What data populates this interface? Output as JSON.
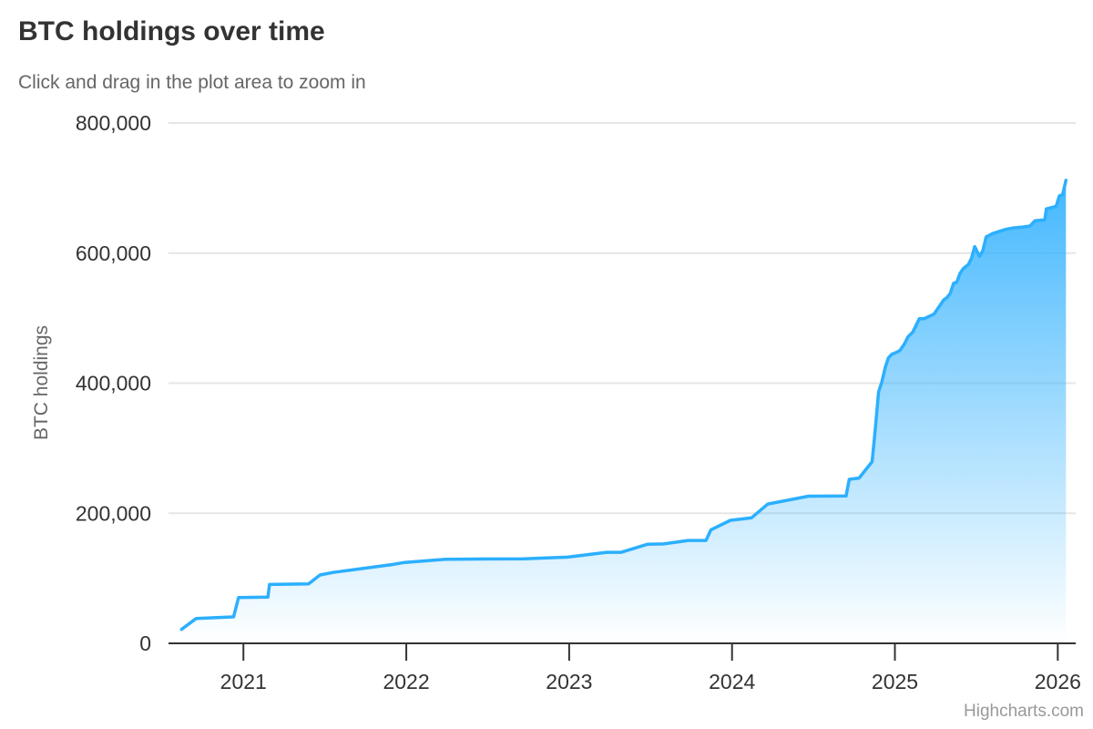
{
  "header": {
    "title": "BTC holdings over time",
    "subtitle": "Click and drag in the plot area to zoom in"
  },
  "credits_label": "Highcharts.com",
  "colors": {
    "line": "#2caffe",
    "fill_top": "rgba(44,175,254,1)",
    "fill_bottom": "rgba(44,175,254,0)",
    "grid": "#e6e6e6",
    "axis_line": "#333333",
    "axis_label": "#333333",
    "axis_title": "#666666",
    "title_text": "#333333",
    "subtitle_text": "#666666",
    "credits_text": "#999999"
  },
  "chart_data": {
    "type": "area",
    "title": "BTC holdings over time",
    "subtitle": "Click and drag in the plot area to zoom in",
    "xlabel": "",
    "ylabel": "BTC holdings",
    "legend": false,
    "grid": "horizontal",
    "xlim": [
      2020.54,
      2026.11
    ],
    "ylim": [
      0,
      800000
    ],
    "xticks": [
      2021,
      2022,
      2023,
      2024,
      2025,
      2026
    ],
    "yticks": [
      0,
      200000,
      400000,
      600000,
      800000
    ],
    "x": [
      2020.62,
      2020.71,
      2020.94,
      2020.97,
      2021.15,
      2021.16,
      2021.4,
      2021.47,
      2021.55,
      2021.7,
      2021.91,
      2021.99,
      2022.24,
      2022.49,
      2022.72,
      2022.99,
      2023.23,
      2023.32,
      2023.48,
      2023.58,
      2023.73,
      2023.84,
      2023.87,
      2023.99,
      2024.12,
      2024.22,
      2024.47,
      2024.7,
      2024.72,
      2024.78,
      2024.86,
      2024.88,
      2024.9,
      2024.92,
      2024.94,
      2024.96,
      2024.98,
      2025.0,
      2025.03,
      2025.06,
      2025.08,
      2025.11,
      2025.15,
      2025.18,
      2025.24,
      2025.3,
      2025.32,
      2025.34,
      2025.36,
      2025.38,
      2025.4,
      2025.42,
      2025.44,
      2025.45,
      2025.47,
      2025.49,
      2025.52,
      2025.54,
      2025.56,
      2025.6,
      2025.63,
      2025.68,
      2025.72,
      2025.78,
      2025.83,
      2025.86,
      2025.92,
      2025.93,
      2025.99,
      2026.01,
      2026.03,
      2026.05
    ],
    "y": [
      21454,
      38250,
      40824,
      70470,
      71079,
      90531,
      91326,
      105085,
      108992,
      114042,
      121044,
      124391,
      129218,
      129699,
      130000,
      132500,
      140000,
      140000,
      152333,
      152800,
      158245,
      158245,
      174530,
      189150,
      193000,
      214246,
      226331,
      226500,
      252220,
      254100,
      279420,
      331200,
      386700,
      402100,
      423650,
      439000,
      444262,
      446400,
      450000,
      461000,
      471107,
      478740,
      499096,
      499226,
      506137,
      528185,
      531644,
      538200,
      553555,
      555450,
      568840,
      576230,
      580250,
      582000,
      592100,
      610000,
      595000,
      604000,
      625000,
      630000,
      632457,
      636505,
      638460,
      640031,
      641692,
      649870,
      651000,
      668000,
      672000,
      688000,
      690000,
      712000
    ]
  }
}
